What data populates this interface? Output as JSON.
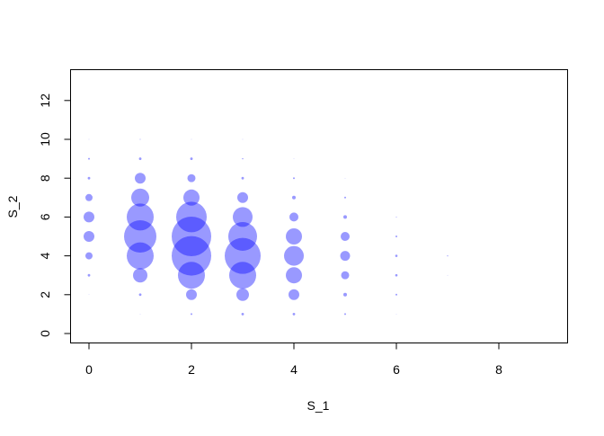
{
  "chart_data": {
    "type": "scatter",
    "title": "",
    "xlabel": "S_1",
    "ylabel": "S_2",
    "xlim": [
      -0.4,
      9.4
    ],
    "ylim": [
      -0.5,
      13.5
    ],
    "xticks": [
      0,
      2,
      4,
      6,
      8
    ],
    "yticks": [
      0,
      2,
      4,
      6,
      8,
      10,
      12
    ],
    "grid": false,
    "marker_color": "#0000ff",
    "marker_opacity": 0.4,
    "size_encoding": "bubble area proportional to weight",
    "points": [
      {
        "x": 0,
        "y": 2,
        "w": 0.1
      },
      {
        "x": 0,
        "y": 3,
        "w": 2
      },
      {
        "x": 0,
        "y": 4,
        "w": 16
      },
      {
        "x": 0,
        "y": 5,
        "w": 36
      },
      {
        "x": 0,
        "y": 6,
        "w": 36
      },
      {
        "x": 0,
        "y": 7,
        "w": 16
      },
      {
        "x": 0,
        "y": 8,
        "w": 2
      },
      {
        "x": 0,
        "y": 9,
        "w": 1
      },
      {
        "x": 0,
        "y": 10,
        "w": 0.1
      },
      {
        "x": 1,
        "y": 1,
        "w": 0.1
      },
      {
        "x": 1,
        "y": 2,
        "w": 2
      },
      {
        "x": 1,
        "y": 3,
        "w": 64
      },
      {
        "x": 1,
        "y": 4,
        "w": 225
      },
      {
        "x": 1,
        "y": 5,
        "w": 324
      },
      {
        "x": 1,
        "y": 6,
        "w": 225
      },
      {
        "x": 1,
        "y": 7,
        "w": 100
      },
      {
        "x": 1,
        "y": 8,
        "w": 36
      },
      {
        "x": 1,
        "y": 9,
        "w": 2
      },
      {
        "x": 1,
        "y": 10,
        "w": 0.25
      },
      {
        "x": 2,
        "y": 1,
        "w": 1
      },
      {
        "x": 2,
        "y": 2,
        "w": 36
      },
      {
        "x": 2,
        "y": 3,
        "w": 225
      },
      {
        "x": 2,
        "y": 4,
        "w": 484
      },
      {
        "x": 2,
        "y": 5,
        "w": 484
      },
      {
        "x": 2,
        "y": 6,
        "w": 289
      },
      {
        "x": 2,
        "y": 7,
        "w": 81
      },
      {
        "x": 2,
        "y": 8,
        "w": 20
      },
      {
        "x": 2,
        "y": 9,
        "w": 2
      },
      {
        "x": 2,
        "y": 10,
        "w": 0.1
      },
      {
        "x": 3,
        "y": 1,
        "w": 2
      },
      {
        "x": 3,
        "y": 2,
        "w": 49
      },
      {
        "x": 3,
        "y": 3,
        "w": 225
      },
      {
        "x": 3,
        "y": 4,
        "w": 400
      },
      {
        "x": 3,
        "y": 5,
        "w": 256
      },
      {
        "x": 3,
        "y": 6,
        "w": 121
      },
      {
        "x": 3,
        "y": 7,
        "w": 36
      },
      {
        "x": 3,
        "y": 8,
        "w": 2
      },
      {
        "x": 3,
        "y": 9,
        "w": 0.5
      },
      {
        "x": 3,
        "y": 10,
        "w": 0.1
      },
      {
        "x": 4,
        "y": 1,
        "w": 2
      },
      {
        "x": 4,
        "y": 2,
        "w": 36
      },
      {
        "x": 4,
        "y": 3,
        "w": 81
      },
      {
        "x": 4,
        "y": 4,
        "w": 121
      },
      {
        "x": 4,
        "y": 5,
        "w": 81
      },
      {
        "x": 4,
        "y": 6,
        "w": 25
      },
      {
        "x": 4,
        "y": 7,
        "w": 4
      },
      {
        "x": 4,
        "y": 8,
        "w": 1
      },
      {
        "x": 4,
        "y": 9,
        "w": 0.1
      },
      {
        "x": 5,
        "y": 1,
        "w": 1
      },
      {
        "x": 5,
        "y": 2,
        "w": 4
      },
      {
        "x": 5,
        "y": 3,
        "w": 20
      },
      {
        "x": 5,
        "y": 4,
        "w": 30
      },
      {
        "x": 5,
        "y": 5,
        "w": 25
      },
      {
        "x": 5,
        "y": 6,
        "w": 4
      },
      {
        "x": 5,
        "y": 7,
        "w": 1
      },
      {
        "x": 5,
        "y": 8,
        "w": 0.1
      },
      {
        "x": 6,
        "y": 1,
        "w": 0.1
      },
      {
        "x": 6,
        "y": 2,
        "w": 1
      },
      {
        "x": 6,
        "y": 3,
        "w": 1.7
      },
      {
        "x": 6,
        "y": 4,
        "w": 1.7
      },
      {
        "x": 6,
        "y": 5,
        "w": 1
      },
      {
        "x": 6,
        "y": 6,
        "w": 0.25
      },
      {
        "x": 7,
        "y": 3,
        "w": 0.1
      },
      {
        "x": 7,
        "y": 4,
        "w": 0.36
      }
    ]
  }
}
